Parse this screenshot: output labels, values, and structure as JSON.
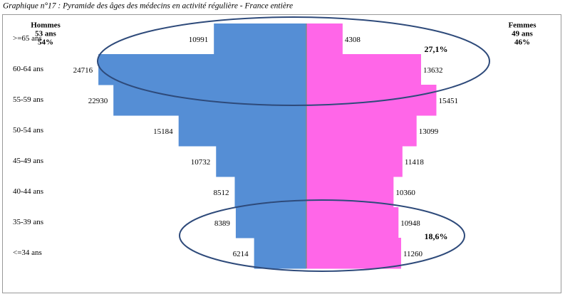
{
  "chart_data": {
    "type": "population_pyramid",
    "title": "Graphique n°17 : Pyramide des âges des médecins en activité régulière  - France entière",
    "categories": [
      ">=65 ans",
      "60-64 ans",
      "55-59 ans",
      "50-54 ans",
      "45-49 ans",
      "40-44 ans",
      "35-39 ans",
      "<=34 ans"
    ],
    "series": [
      {
        "name": "Hommes",
        "color": "#558ED5",
        "side": "left",
        "notes": [
          "53 ans",
          "54%"
        ],
        "values": [
          10991,
          24716,
          22930,
          15184,
          10732,
          8512,
          8389,
          6214
        ]
      },
      {
        "name": "Femmes",
        "color": "#FF66E8",
        "side": "right",
        "notes": [
          "49 ans",
          "46%"
        ],
        "values": [
          4308,
          13632,
          15451,
          13099,
          11418,
          10360,
          10948,
          11260
        ]
      }
    ],
    "annotations": [
      {
        "text": "27,1%",
        "color": "#E8202A"
      },
      {
        "text": "18,6%",
        "color": "#E8202A"
      }
    ]
  }
}
